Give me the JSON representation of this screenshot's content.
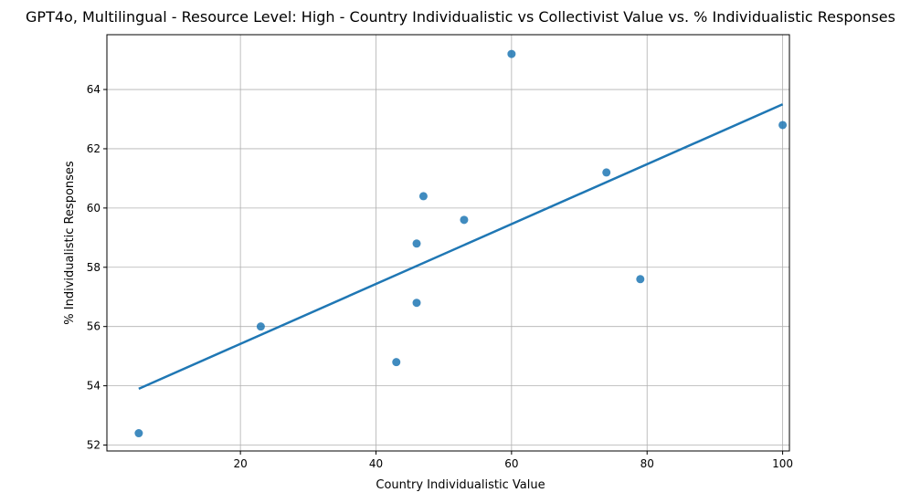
{
  "chart_data": {
    "type": "scatter",
    "title": "GPT4o, Multilingual - Resource Level: High - Country Individualistic vs Collectivist Value vs. % Individualistic Responses",
    "xlabel": "Country Individualistic Value",
    "ylabel": "% Individualistic Responses",
    "xlim": [
      0.3,
      101
    ],
    "ylim": [
      51.8,
      65.85
    ],
    "xticks": [
      20,
      40,
      60,
      80,
      100
    ],
    "yticks": [
      52,
      54,
      56,
      58,
      60,
      62,
      64
    ],
    "grid": true,
    "points": [
      {
        "x": 5,
        "y": 52.4
      },
      {
        "x": 23,
        "y": 56.0
      },
      {
        "x": 43,
        "y": 54.8
      },
      {
        "x": 46,
        "y": 56.8
      },
      {
        "x": 46,
        "y": 58.8
      },
      {
        "x": 47,
        "y": 60.4
      },
      {
        "x": 53,
        "y": 59.6
      },
      {
        "x": 60,
        "y": 65.2
      },
      {
        "x": 74,
        "y": 61.2
      },
      {
        "x": 79,
        "y": 57.6
      },
      {
        "x": 100,
        "y": 62.8
      }
    ],
    "fit_line": [
      {
        "x": 5,
        "y": 53.9
      },
      {
        "x": 100,
        "y": 63.5
      }
    ],
    "colors": {
      "points": "#1f77b4",
      "line": "#1f77b4",
      "grid": "#b0b0b0"
    }
  }
}
